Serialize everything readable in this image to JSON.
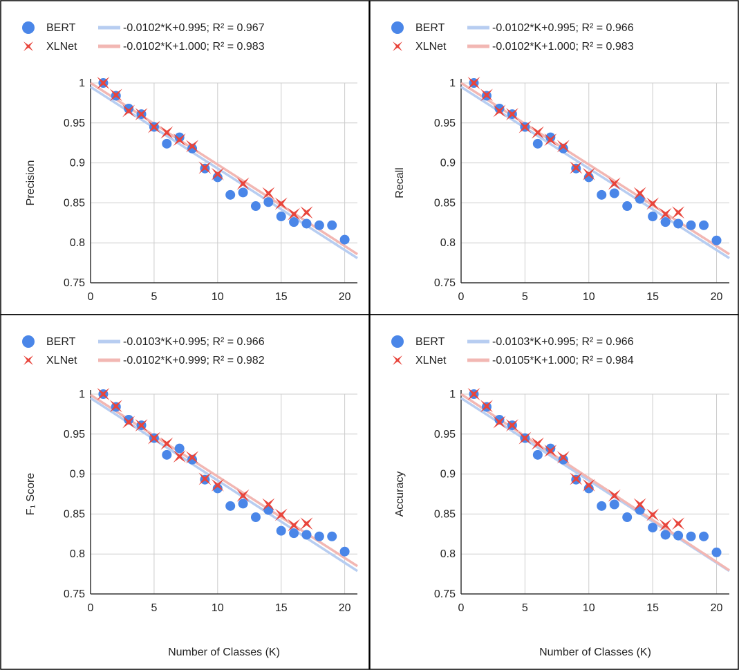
{
  "colors": {
    "bert": "#4a86e8",
    "xlnet": "#e8453c",
    "bert_trend": "#b7cdf1",
    "xlnet_trend": "#f2b7b3",
    "grid": "#cccccc"
  },
  "chart_data": [
    {
      "type": "scatter",
      "ylabel": "Precision",
      "xlabel": "",
      "xlim": [
        0,
        21
      ],
      "ylim": [
        0.75,
        1.0
      ],
      "xticks": [
        "0",
        "5",
        "10",
        "15",
        "20"
      ],
      "yticks": [
        "0.75",
        "0.8",
        "0.85",
        "0.9",
        "0.95",
        "1"
      ],
      "grid": true,
      "legend": "top-left",
      "series": [
        {
          "name": "BERT",
          "marker": "circle",
          "x": [
            1,
            2,
            3,
            4,
            5,
            6,
            7,
            8,
            9,
            10,
            11,
            12,
            13,
            14,
            15,
            16,
            17,
            18,
            19,
            20
          ],
          "y": [
            1.0,
            0.984,
            0.968,
            0.961,
            0.945,
            0.924,
            0.932,
            0.918,
            0.893,
            0.882,
            0.86,
            0.863,
            0.846,
            0.851,
            0.833,
            0.826,
            0.824,
            0.822,
            0.822,
            0.804
          ]
        },
        {
          "name": "XLNet",
          "marker": "x",
          "x": [
            1,
            2,
            3,
            4,
            5,
            6,
            7,
            8,
            9,
            10,
            12,
            14,
            15,
            16,
            17
          ],
          "y": [
            1.0,
            0.985,
            0.965,
            0.961,
            0.945,
            0.938,
            0.929,
            0.921,
            0.894,
            0.886,
            0.874,
            0.862,
            0.849,
            0.836,
            0.838
          ]
        }
      ],
      "trendlines": [
        {
          "label": "-0.0102*K+0.995; R² = 0.967",
          "slope": -0.0102,
          "intercept": 0.995,
          "series": "BERT"
        },
        {
          "label": "-0.0102*K+1.000; R² = 0.983",
          "slope": -0.0102,
          "intercept": 1.0,
          "series": "XLNet"
        }
      ]
    },
    {
      "type": "scatter",
      "ylabel": "Recall",
      "xlabel": "",
      "xlim": [
        0,
        21
      ],
      "ylim": [
        0.75,
        1.0
      ],
      "xticks": [
        "0",
        "5",
        "10",
        "15",
        "20"
      ],
      "yticks": [
        "0.75",
        "0.8",
        "0.85",
        "0.9",
        "0.95",
        "1"
      ],
      "grid": true,
      "legend": "top-left",
      "series": [
        {
          "name": "BERT",
          "marker": "circle",
          "x": [
            1,
            2,
            3,
            4,
            5,
            6,
            7,
            8,
            9,
            10,
            11,
            12,
            13,
            14,
            15,
            16,
            17,
            18,
            19,
            20
          ],
          "y": [
            1.0,
            0.984,
            0.968,
            0.961,
            0.945,
            0.924,
            0.932,
            0.918,
            0.893,
            0.882,
            0.86,
            0.862,
            0.846,
            0.855,
            0.833,
            0.826,
            0.824,
            0.822,
            0.822,
            0.803
          ]
        },
        {
          "name": "XLNet",
          "marker": "x",
          "x": [
            1,
            2,
            3,
            4,
            5,
            6,
            7,
            8,
            9,
            10,
            12,
            14,
            15,
            16,
            17
          ],
          "y": [
            1.0,
            0.985,
            0.965,
            0.961,
            0.945,
            0.938,
            0.929,
            0.921,
            0.894,
            0.886,
            0.874,
            0.862,
            0.849,
            0.836,
            0.838
          ]
        }
      ],
      "trendlines": [
        {
          "label": "-0.0102*K+0.995; R² = 0.966",
          "slope": -0.0102,
          "intercept": 0.995,
          "series": "BERT"
        },
        {
          "label": "-0.0102*K+1.000; R² = 0.983",
          "slope": -0.0102,
          "intercept": 1.0,
          "series": "XLNet"
        }
      ]
    },
    {
      "type": "scatter",
      "ylabel": "F₁ Score",
      "xlabel": "Number of Classes (K)",
      "xlim": [
        0,
        21
      ],
      "ylim": [
        0.75,
        1.0
      ],
      "xticks": [
        "0",
        "5",
        "10",
        "15",
        "20"
      ],
      "yticks": [
        "0.75",
        "0.8",
        "0.85",
        "0.9",
        "0.95",
        "1"
      ],
      "grid": true,
      "legend": "top-left",
      "series": [
        {
          "name": "BERT",
          "marker": "circle",
          "x": [
            1,
            2,
            3,
            4,
            5,
            6,
            7,
            8,
            9,
            10,
            11,
            12,
            13,
            14,
            15,
            16,
            17,
            18,
            19,
            20
          ],
          "y": [
            1.0,
            0.984,
            0.968,
            0.961,
            0.945,
            0.924,
            0.932,
            0.918,
            0.893,
            0.882,
            0.86,
            0.863,
            0.846,
            0.855,
            0.829,
            0.826,
            0.824,
            0.822,
            0.822,
            0.803
          ]
        },
        {
          "name": "XLNet",
          "marker": "x",
          "x": [
            1,
            2,
            3,
            4,
            5,
            6,
            7,
            8,
            9,
            10,
            12,
            14,
            15,
            16,
            17
          ],
          "y": [
            1.0,
            0.985,
            0.965,
            0.961,
            0.945,
            0.938,
            0.922,
            0.921,
            0.894,
            0.886,
            0.873,
            0.862,
            0.849,
            0.836,
            0.838
          ]
        }
      ],
      "trendlines": [
        {
          "label": "-0.0103*K+0.995; R² = 0.966",
          "slope": -0.0103,
          "intercept": 0.995,
          "series": "BERT"
        },
        {
          "label": "-0.0102*K+0.999; R² = 0.982",
          "slope": -0.0102,
          "intercept": 0.999,
          "series": "XLNet"
        }
      ]
    },
    {
      "type": "scatter",
      "ylabel": "Accuracy",
      "xlabel": "Number of Classes (K)",
      "xlim": [
        0,
        21
      ],
      "ylim": [
        0.75,
        1.0
      ],
      "xticks": [
        "0",
        "5",
        "10",
        "15",
        "20"
      ],
      "yticks": [
        "0.75",
        "0.8",
        "0.85",
        "0.9",
        "0.95",
        "1"
      ],
      "grid": true,
      "legend": "top-left",
      "series": [
        {
          "name": "BERT",
          "marker": "circle",
          "x": [
            1,
            2,
            3,
            4,
            5,
            6,
            7,
            8,
            9,
            10,
            11,
            12,
            13,
            14,
            15,
            16,
            17,
            18,
            19,
            20
          ],
          "y": [
            1.0,
            0.984,
            0.968,
            0.961,
            0.945,
            0.924,
            0.932,
            0.918,
            0.893,
            0.882,
            0.86,
            0.862,
            0.846,
            0.855,
            0.833,
            0.824,
            0.823,
            0.822,
            0.822,
            0.802
          ]
        },
        {
          "name": "XLNet",
          "marker": "x",
          "x": [
            1,
            2,
            3,
            4,
            5,
            6,
            7,
            8,
            9,
            10,
            12,
            14,
            15,
            16,
            17
          ],
          "y": [
            1.0,
            0.985,
            0.965,
            0.961,
            0.945,
            0.938,
            0.929,
            0.921,
            0.894,
            0.886,
            0.873,
            0.862,
            0.849,
            0.836,
            0.838
          ]
        }
      ],
      "trendlines": [
        {
          "label": "-0.0103*K+0.995; R² = 0.966",
          "slope": -0.0103,
          "intercept": 0.995,
          "series": "BERT"
        },
        {
          "label": "-0.0105*K+1.000; R² = 0.984",
          "slope": -0.0105,
          "intercept": 1.0,
          "series": "XLNet"
        }
      ]
    }
  ]
}
